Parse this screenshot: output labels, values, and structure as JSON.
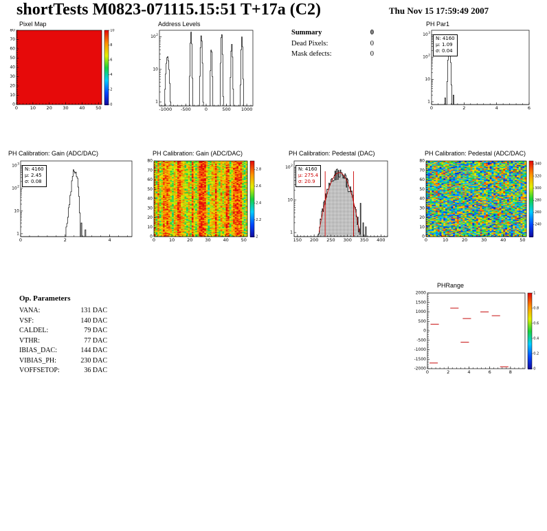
{
  "header": {
    "title": "shortTests M0823-071115.15:51 T+17a (C2)",
    "datetime": "Thu Nov 15 17:59:49 2007"
  },
  "summary": {
    "title": "Summary",
    "value": "0",
    "rows": [
      {
        "label": "Dead Pixels:",
        "value": "0"
      },
      {
        "label": "Mask defects:",
        "value": "0"
      }
    ]
  },
  "op_parameters": {
    "title": "Op. Parameters",
    "rows": [
      {
        "label": "VANA:",
        "value": "131 DAC"
      },
      {
        "label": "VSF:",
        "value": "140 DAC"
      },
      {
        "label": "CALDEL:",
        "value": "79 DAC"
      },
      {
        "label": "VTHR:",
        "value": "77 DAC"
      },
      {
        "label": "IBIAS_DAC:",
        "value": "144 DAC"
      },
      {
        "label": "VIBIAS_PH:",
        "value": "230 DAC"
      },
      {
        "label": "VOFFSETOP:",
        "value": "36 DAC"
      }
    ]
  },
  "chart_data": [
    {
      "type": "heatmap",
      "title": "Pixel Map",
      "xlim": [
        0,
        52
      ],
      "ylim": [
        0,
        80
      ],
      "x_ticks": [
        0,
        10,
        20,
        30,
        40,
        50
      ],
      "y_ticks": [
        0,
        10,
        20,
        30,
        40,
        50,
        60,
        70,
        80
      ],
      "pattern": "uniform",
      "uniform_level": 1.0,
      "colorbar": {
        "min": 0,
        "max": 10,
        "ticks": [
          10,
          8,
          6,
          4,
          2,
          0
        ]
      }
    },
    {
      "type": "histogram",
      "title": "Address Levels",
      "xlim": [
        -1150,
        1150
      ],
      "x_ticks": [
        -1000,
        -500,
        0,
        500,
        1000
      ],
      "ylog": true,
      "y_tick_labels": [
        "1",
        "10",
        "10^2"
      ],
      "peaks": [
        {
          "pos": -950,
          "sigma": 28,
          "amp": 25
        },
        {
          "pos": -370,
          "sigma": 13,
          "amp": 140
        },
        {
          "pos": -120,
          "sigma": 15,
          "amp": 110
        },
        {
          "pos": 130,
          "sigma": 13,
          "amp": 45
        },
        {
          "pos": 380,
          "sigma": 13,
          "amp": 130
        },
        {
          "pos": 630,
          "sigma": 14,
          "amp": 60
        },
        {
          "pos": 880,
          "sigma": 13,
          "amp": 100
        }
      ]
    },
    {
      "type": "histogram",
      "title": "PH Par1",
      "stats_lines": [
        "N: 4160",
        "μ: 1.09",
        "σ: 0.04"
      ],
      "xlim": [
        0,
        6
      ],
      "x_ticks": [
        0,
        2,
        4,
        6
      ],
      "ylog": true,
      "y_tick_labels": [
        "1",
        "10",
        "10^2",
        "10^3"
      ],
      "peaks": [
        {
          "pos": 1.09,
          "sigma": 0.045,
          "amp": 400
        }
      ],
      "outliers": [
        [
          1.35,
          2
        ],
        [
          0.85,
          1.5
        ]
      ]
    },
    {
      "type": "histogram",
      "title": "PH Calibration: Gain (ADC/DAC)",
      "stats_lines": [
        "N: 4160",
        "μ: 2.45",
        "σ: 0.08"
      ],
      "xlim": [
        0,
        5
      ],
      "x_ticks": [
        0,
        2,
        4
      ],
      "ylog": true,
      "y_tick_labels": [
        "1",
        "10",
        "10^2",
        "10^3"
      ],
      "jitter": true,
      "peaks": [
        {
          "pos": 2.2,
          "sigma": 0.05,
          "amp": 25
        },
        {
          "pos": 2.42,
          "sigma": 0.07,
          "amp": 620
        },
        {
          "pos": 2.55,
          "sigma": 0.045,
          "amp": 160
        }
      ],
      "outliers": [
        [
          2.05,
          2
        ],
        [
          2.72,
          3
        ],
        [
          2.9,
          1.5
        ]
      ]
    },
    {
      "type": "heatmap",
      "title": "PH Calibration: Gain (ADC/DAC)",
      "xlim": [
        0,
        52
      ],
      "ylim": [
        0,
        80
      ],
      "x_ticks": [
        0,
        10,
        20,
        30,
        40,
        50
      ],
      "y_ticks": [
        0,
        10,
        20,
        30,
        40,
        50,
        60,
        70,
        80
      ],
      "pattern": "columns",
      "base_level": 0.74,
      "column_spread": 0.2,
      "cell_spread": 0.18,
      "colorbar": {
        "min": 2,
        "max": 2.9,
        "ticks": [
          2.8,
          2.6,
          2.4,
          2.2,
          2
        ]
      }
    },
    {
      "type": "histogram",
      "title": "PH Calibration: Pedestal (DAC)",
      "stats_lines": [
        "N: 4160",
        "μ: 275.4",
        "σ: 20.9"
      ],
      "xlim": [
        140,
        420
      ],
      "x_ticks": [
        150,
        200,
        250,
        300,
        350,
        400
      ],
      "ylog": true,
      "y_tick_labels": [
        "1",
        "10",
        "10^2"
      ],
      "jitter": true,
      "dotted_fill": true,
      "peaks": [
        {
          "pos": 275,
          "sigma": 21,
          "amp": 70
        }
      ],
      "outliers": [
        [
          322,
          6
        ],
        [
          331,
          3
        ],
        [
          338,
          8
        ],
        [
          346,
          2
        ],
        [
          355,
          1.5
        ],
        [
          225,
          2
        ]
      ],
      "fit": {
        "mu": 275.4,
        "sigma": 20.9,
        "amp": 70,
        "color": "#cc0000"
      },
      "red_lines": [
        233,
        318
      ]
    },
    {
      "type": "heatmap",
      "title": "PH Calibration: Pedestal (ADC/DAC)",
      "xlim": [
        0,
        52
      ],
      "ylim": [
        0,
        80
      ],
      "x_ticks": [
        0,
        10,
        20,
        30,
        40,
        50
      ],
      "y_ticks": [
        0,
        10,
        20,
        30,
        40,
        50,
        60,
        70,
        80
      ],
      "pattern": "cells",
      "base_level": 0.5,
      "column_spread": 0.06,
      "cell_spread": 0.42,
      "colorbar": {
        "min": 220,
        "max": 345,
        "ticks": [
          340,
          320,
          300,
          280,
          260,
          240
        ]
      }
    },
    {
      "type": "dashes",
      "title": "PHRange",
      "xlim": [
        0,
        9.4
      ],
      "x_ticks": [
        0,
        2,
        4,
        6,
        8
      ],
      "ylim": [
        -2000,
        2000
      ],
      "y_ticks": [
        2000,
        1500,
        1000,
        500,
        0,
        -500,
        -1000,
        -1500,
        -2000
      ],
      "marker_color": "#cc2222",
      "segments": [
        {
          "x1": 2.2,
          "x2": 3.0,
          "y": 1200
        },
        {
          "x1": 5.1,
          "x2": 5.9,
          "y": 1000
        },
        {
          "x1": 6.2,
          "x2": 7.0,
          "y": 800
        },
        {
          "x1": 3.4,
          "x2": 4.2,
          "y": 650
        },
        {
          "x1": 0.3,
          "x2": 1.1,
          "y": 350
        },
        {
          "x1": 3.2,
          "x2": 4.0,
          "y": -600
        },
        {
          "x1": 0.2,
          "x2": 1.0,
          "y": -1700
        },
        {
          "x1": 7.0,
          "x2": 7.8,
          "y": -1900
        }
      ],
      "colorbar": {
        "min": 0,
        "max": 1,
        "ticks": [
          1,
          0.8,
          0.6,
          0.4,
          0.2,
          0
        ]
      }
    }
  ]
}
